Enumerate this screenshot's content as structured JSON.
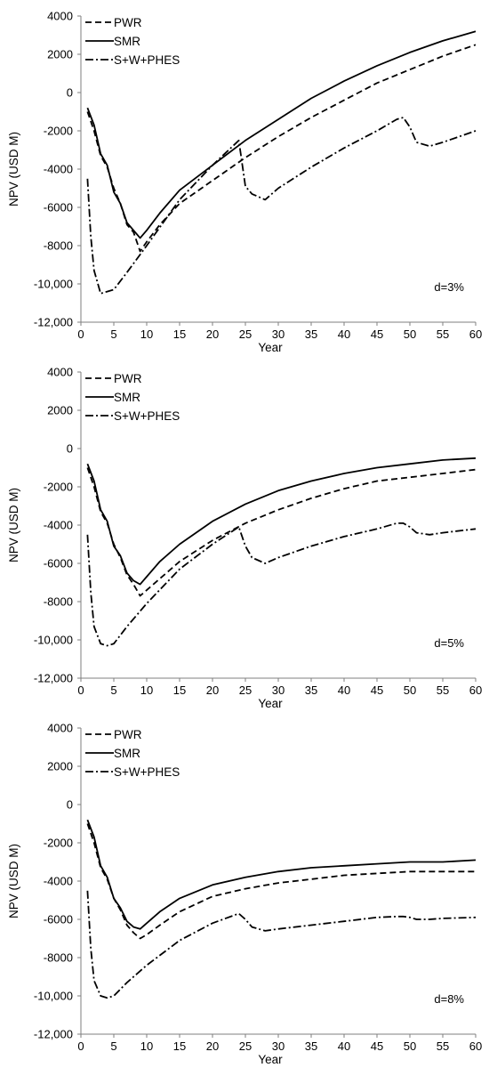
{
  "chart_data": [
    {
      "type": "line",
      "title": "",
      "xlabel": "Year",
      "ylabel": "NPV (USD M)",
      "xlim": [
        0,
        60
      ],
      "ylim": [
        -12000,
        4000
      ],
      "xticks": [
        "0",
        "5",
        "10",
        "15",
        "20",
        "25",
        "30",
        "35",
        "40",
        "45",
        "50",
        "55",
        "60"
      ],
      "yticks": [
        "-12,000",
        "-10,000",
        "-8000",
        "-6000",
        "-4000",
        "-2000",
        "0",
        "2000",
        "4000"
      ],
      "grid": false,
      "legend_position": "top-left",
      "annotation": "d=3%",
      "series": [
        {
          "name": "PWR",
          "style": "dashed",
          "color": "#000000",
          "points": [
            [
              1,
              -1000
            ],
            [
              2,
              -2000
            ],
            [
              3,
              -3300
            ],
            [
              4,
              -3900
            ],
            [
              5,
              -5000
            ],
            [
              6,
              -5800
            ],
            [
              7,
              -6900
            ],
            [
              8,
              -7300
            ],
            [
              9,
              -8300
            ],
            [
              10,
              -7800
            ],
            [
              12,
              -6900
            ],
            [
              15,
              -5800
            ],
            [
              20,
              -4600
            ],
            [
              25,
              -3400
            ],
            [
              30,
              -2300
            ],
            [
              35,
              -1300
            ],
            [
              40,
              -400
            ],
            [
              45,
              500
            ],
            [
              50,
              1200
            ],
            [
              55,
              1900
            ],
            [
              60,
              2500
            ]
          ]
        },
        {
          "name": "SMR",
          "style": "solid",
          "color": "#000000",
          "points": [
            [
              1,
              -800
            ],
            [
              2,
              -1700
            ],
            [
              3,
              -3200
            ],
            [
              4,
              -3800
            ],
            [
              5,
              -5200
            ],
            [
              6,
              -5800
            ],
            [
              7,
              -6800
            ],
            [
              8,
              -7200
            ],
            [
              9,
              -7600
            ],
            [
              10,
              -7200
            ],
            [
              12,
              -6300
            ],
            [
              15,
              -5100
            ],
            [
              20,
              -3800
            ],
            [
              25,
              -2500
            ],
            [
              30,
              -1400
            ],
            [
              35,
              -300
            ],
            [
              40,
              600
            ],
            [
              45,
              1400
            ],
            [
              50,
              2100
            ],
            [
              55,
              2700
            ],
            [
              60,
              3200
            ]
          ]
        },
        {
          "name": "S+W+PHES",
          "style": "dashdot",
          "color": "#000000",
          "points": [
            [
              1,
              -4500
            ],
            [
              1.5,
              -7500
            ],
            [
              2,
              -9300
            ],
            [
              3,
              -10500
            ],
            [
              4,
              -10400
            ],
            [
              5,
              -10300
            ],
            [
              7,
              -9400
            ],
            [
              10,
              -8000
            ],
            [
              15,
              -5600
            ],
            [
              20,
              -3800
            ],
            [
              24,
              -2500
            ],
            [
              25,
              -4900
            ],
            [
              26,
              -5300
            ],
            [
              28,
              -5600
            ],
            [
              30,
              -5000
            ],
            [
              35,
              -3900
            ],
            [
              40,
              -2900
            ],
            [
              45,
              -2000
            ],
            [
              48,
              -1400
            ],
            [
              49,
              -1300
            ],
            [
              50,
              -1800
            ],
            [
              51,
              -2600
            ],
            [
              53,
              -2800
            ],
            [
              55,
              -2600
            ],
            [
              60,
              -2000
            ]
          ]
        }
      ]
    },
    {
      "type": "line",
      "title": "",
      "xlabel": "Year",
      "ylabel": "NPV (USD M)",
      "xlim": [
        0,
        60
      ],
      "ylim": [
        -12000,
        4000
      ],
      "xticks": [
        "0",
        "5",
        "10",
        "15",
        "20",
        "25",
        "30",
        "35",
        "40",
        "45",
        "50",
        "55",
        "60"
      ],
      "yticks": [
        "-12,000",
        "-10,000",
        "-8000",
        "-6000",
        "-4000",
        "-2000",
        "0",
        "2000",
        "4000"
      ],
      "grid": false,
      "legend_position": "top-left",
      "annotation": "d=5%",
      "series": [
        {
          "name": "PWR",
          "style": "dashed",
          "color": "#000000",
          "points": [
            [
              1,
              -1000
            ],
            [
              2,
              -2000
            ],
            [
              3,
              -3300
            ],
            [
              4,
              -3900
            ],
            [
              5,
              -5000
            ],
            [
              6,
              -5700
            ],
            [
              7,
              -6600
            ],
            [
              8,
              -7100
            ],
            [
              9,
              -7700
            ],
            [
              10,
              -7400
            ],
            [
              12,
              -6800
            ],
            [
              15,
              -5900
            ],
            [
              20,
              -4800
            ],
            [
              25,
              -3900
            ],
            [
              30,
              -3200
            ],
            [
              35,
              -2600
            ],
            [
              40,
              -2100
            ],
            [
              45,
              -1700
            ],
            [
              50,
              -1500
            ],
            [
              55,
              -1300
            ],
            [
              60,
              -1100
            ]
          ]
        },
        {
          "name": "SMR",
          "style": "solid",
          "color": "#000000",
          "points": [
            [
              1,
              -800
            ],
            [
              2,
              -1700
            ],
            [
              3,
              -3200
            ],
            [
              4,
              -3800
            ],
            [
              5,
              -5100
            ],
            [
              6,
              -5600
            ],
            [
              7,
              -6500
            ],
            [
              8,
              -6900
            ],
            [
              9,
              -7100
            ],
            [
              10,
              -6700
            ],
            [
              12,
              -5900
            ],
            [
              15,
              -5000
            ],
            [
              20,
              -3800
            ],
            [
              25,
              -2900
            ],
            [
              30,
              -2200
            ],
            [
              35,
              -1700
            ],
            [
              40,
              -1300
            ],
            [
              45,
              -1000
            ],
            [
              50,
              -800
            ],
            [
              55,
              -600
            ],
            [
              60,
              -500
            ]
          ]
        },
        {
          "name": "S+W+PHES",
          "style": "dashdot",
          "color": "#000000",
          "points": [
            [
              1,
              -4500
            ],
            [
              1.5,
              -7500
            ],
            [
              2,
              -9300
            ],
            [
              3,
              -10200
            ],
            [
              4,
              -10300
            ],
            [
              5,
              -10200
            ],
            [
              7,
              -9300
            ],
            [
              10,
              -8100
            ],
            [
              15,
              -6300
            ],
            [
              20,
              -5000
            ],
            [
              24,
              -4100
            ],
            [
              25,
              -5100
            ],
            [
              26,
              -5700
            ],
            [
              28,
              -6000
            ],
            [
              30,
              -5700
            ],
            [
              35,
              -5100
            ],
            [
              40,
              -4600
            ],
            [
              45,
              -4200
            ],
            [
              48,
              -3900
            ],
            [
              49,
              -3900
            ],
            [
              50,
              -4100
            ],
            [
              51,
              -4400
            ],
            [
              53,
              -4500
            ],
            [
              55,
              -4400
            ],
            [
              60,
              -4200
            ]
          ]
        }
      ]
    },
    {
      "type": "line",
      "title": "",
      "xlabel": "Year",
      "ylabel": "NPV (USD M)",
      "xlim": [
        0,
        60
      ],
      "ylim": [
        -12000,
        4000
      ],
      "xticks": [
        "0",
        "5",
        "10",
        "15",
        "20",
        "25",
        "30",
        "35",
        "40",
        "45",
        "50",
        "55",
        "60"
      ],
      "yticks": [
        "-12,000",
        "-10,000",
        "-8000",
        "-6000",
        "-4000",
        "-2000",
        "0",
        "2000",
        "4000"
      ],
      "grid": false,
      "legend_position": "top-left",
      "annotation": "d=8%",
      "series": [
        {
          "name": "PWR",
          "style": "dashed",
          "color": "#000000",
          "points": [
            [
              1,
              -1000
            ],
            [
              2,
              -2000
            ],
            [
              3,
              -3300
            ],
            [
              4,
              -3900
            ],
            [
              5,
              -4900
            ],
            [
              6,
              -5500
            ],
            [
              7,
              -6300
            ],
            [
              8,
              -6700
            ],
            [
              9,
              -7000
            ],
            [
              10,
              -6800
            ],
            [
              12,
              -6300
            ],
            [
              15,
              -5600
            ],
            [
              20,
              -4800
            ],
            [
              25,
              -4400
            ],
            [
              30,
              -4100
            ],
            [
              35,
              -3900
            ],
            [
              40,
              -3700
            ],
            [
              45,
              -3600
            ],
            [
              50,
              -3500
            ],
            [
              55,
              -3500
            ],
            [
              60,
              -3500
            ]
          ]
        },
        {
          "name": "SMR",
          "style": "solid",
          "color": "#000000",
          "points": [
            [
              1,
              -800
            ],
            [
              2,
              -1700
            ],
            [
              3,
              -3200
            ],
            [
              4,
              -3800
            ],
            [
              5,
              -4900
            ],
            [
              6,
              -5400
            ],
            [
              7,
              -6100
            ],
            [
              8,
              -6400
            ],
            [
              9,
              -6500
            ],
            [
              10,
              -6200
            ],
            [
              12,
              -5600
            ],
            [
              15,
              -4900
            ],
            [
              20,
              -4200
            ],
            [
              25,
              -3800
            ],
            [
              30,
              -3500
            ],
            [
              35,
              -3300
            ],
            [
              40,
              -3200
            ],
            [
              45,
              -3100
            ],
            [
              50,
              -3000
            ],
            [
              55,
              -3000
            ],
            [
              60,
              -2900
            ]
          ]
        },
        {
          "name": "S+W+PHES",
          "style": "dashdot",
          "color": "#000000",
          "points": [
            [
              1,
              -4500
            ],
            [
              1.5,
              -7500
            ],
            [
              2,
              -9200
            ],
            [
              3,
              -10000
            ],
            [
              4,
              -10100
            ],
            [
              5,
              -10000
            ],
            [
              7,
              -9300
            ],
            [
              10,
              -8400
            ],
            [
              15,
              -7100
            ],
            [
              20,
              -6200
            ],
            [
              24,
              -5700
            ],
            [
              25,
              -6000
            ],
            [
              26,
              -6400
            ],
            [
              28,
              -6600
            ],
            [
              30,
              -6500
            ],
            [
              35,
              -6300
            ],
            [
              40,
              -6100
            ],
            [
              45,
              -5900
            ],
            [
              48,
              -5850
            ],
            [
              49,
              -5850
            ],
            [
              50,
              -5900
            ],
            [
              51,
              -6000
            ],
            [
              53,
              -6000
            ],
            [
              55,
              -5950
            ],
            [
              60,
              -5900
            ]
          ]
        }
      ]
    }
  ]
}
